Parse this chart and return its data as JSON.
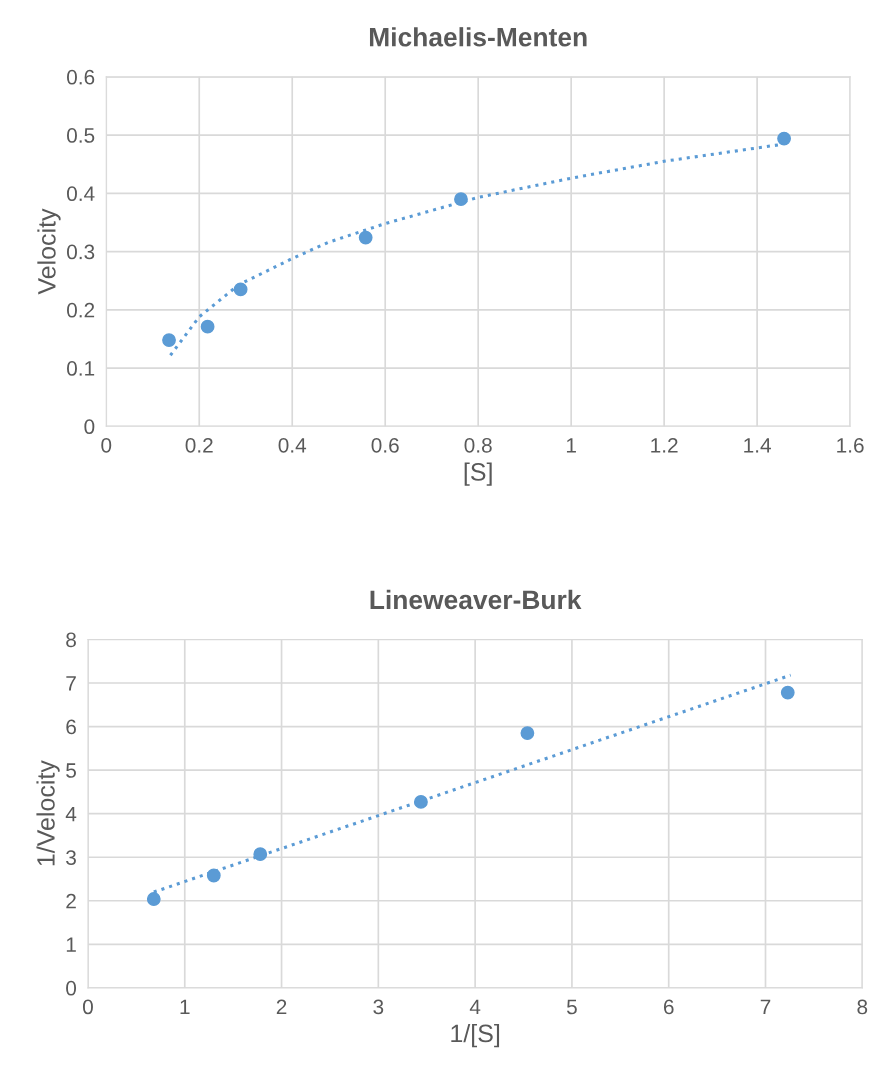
{
  "chart_data": [
    {
      "type": "scatter",
      "title": "Michaelis-Menten",
      "xlabel": "[S]",
      "ylabel": "Velocity",
      "xlim": [
        0,
        1.6
      ],
      "xticks": [
        0,
        0.2,
        0.4,
        0.6,
        0.8,
        1,
        1.2,
        1.4,
        1.6
      ],
      "ylim": [
        0,
        0.6
      ],
      "yticks": [
        0,
        0.1,
        0.2,
        0.3,
        0.4,
        0.5,
        0.6
      ],
      "grid": true,
      "legend": false,
      "series": [
        {
          "marker": "circle",
          "color": "#5b9bd5",
          "x": [
            0.135,
            0.218,
            0.289,
            0.558,
            0.763,
            1.458
          ],
          "values": [
            0.148,
            0.171,
            0.235,
            0.324,
            0.39,
            0.494
          ]
        },
        {
          "type": "line",
          "marker": "none",
          "line_style": "dotted",
          "color": "#5b9bd5",
          "x": [
            0.138,
            0.2,
            0.285,
            0.4,
            0.478,
            0.6,
            0.8,
            1.0,
            1.2,
            1.453
          ],
          "values": [
            0.122,
            0.188,
            0.243,
            0.288,
            0.316,
            0.348,
            0.393,
            0.426,
            0.455,
            0.484
          ]
        }
      ]
    },
    {
      "type": "scatter",
      "title": "Lineweaver-Burk",
      "xlabel": "1/[S]",
      "ylabel": "1/Velocity",
      "xlim": [
        0,
        8
      ],
      "xticks": [
        0,
        1,
        2,
        3,
        4,
        5,
        6,
        7,
        8
      ],
      "ylim": [
        0,
        8
      ],
      "yticks": [
        0,
        1,
        2,
        3,
        4,
        5,
        6,
        7,
        8
      ],
      "grid": true,
      "legend": false,
      "series": [
        {
          "marker": "circle",
          "color": "#5b9bd5",
          "x": [
            0.68,
            1.3,
            1.78,
            3.44,
            4.54,
            7.23
          ],
          "values": [
            2.04,
            2.58,
            3.07,
            4.27,
            5.85,
            6.78
          ]
        },
        {
          "type": "line",
          "marker": "none",
          "line_style": "dotted",
          "color": "#5b9bd5",
          "x": [
            0.68,
            7.26
          ],
          "values": [
            2.2,
            7.18
          ]
        }
      ]
    }
  ]
}
